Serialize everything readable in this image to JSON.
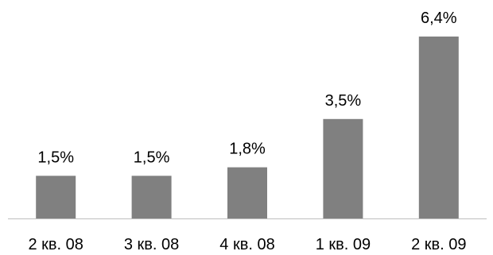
{
  "chart_data": {
    "type": "bar",
    "categories": [
      "2 кв. 08",
      "3 кв. 08",
      "4 кв. 08",
      "1 кв. 09",
      "2 кв. 09"
    ],
    "values": [
      1.5,
      1.5,
      1.8,
      3.5,
      6.4
    ],
    "data_labels": [
      "1,5%",
      "1,5%",
      "1,8%",
      "3,5%",
      "6,4%"
    ],
    "title": "",
    "xlabel": "",
    "ylabel": "",
    "ylim": [
      0,
      6.4
    ],
    "grid": false,
    "legend": "none",
    "bar_color": "#808080"
  }
}
